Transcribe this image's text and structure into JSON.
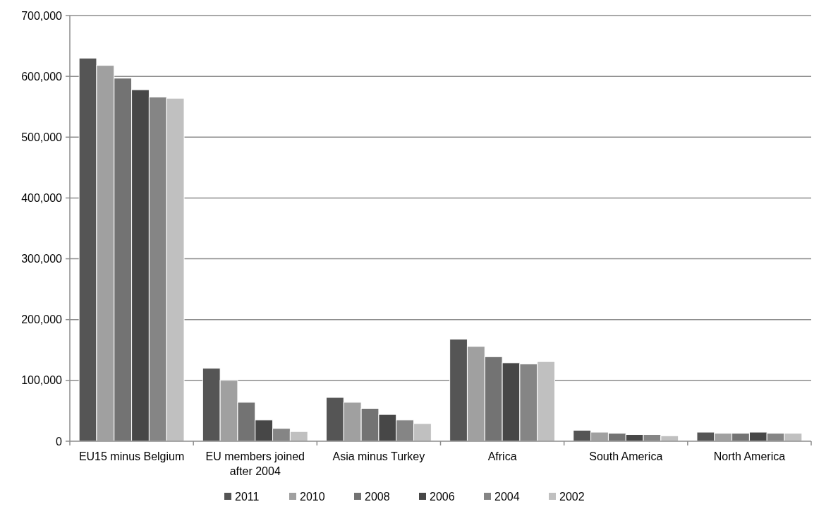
{
  "chart_data": {
    "type": "bar",
    "categories": [
      "EU15 minus Belgium",
      "EU members joined after 2004",
      "Asia minus Turkey",
      "Africa",
      "South America",
      "North America"
    ],
    "series": [
      {
        "name": "2011",
        "color": "#555555",
        "values": [
          630000,
          120000,
          72000,
          168000,
          18000,
          15000
        ]
      },
      {
        "name": "2010",
        "color": "#a0a0a0",
        "values": [
          618000,
          100000,
          64000,
          156000,
          15000,
          13000
        ]
      },
      {
        "name": "2008",
        "color": "#737373",
        "values": [
          597000,
          64000,
          54000,
          139000,
          13000,
          13000
        ]
      },
      {
        "name": "2006",
        "color": "#474747",
        "values": [
          578000,
          35000,
          44000,
          129000,
          11000,
          15000
        ]
      },
      {
        "name": "2004",
        "color": "#858585",
        "values": [
          566000,
          21000,
          35000,
          127000,
          11000,
          13000
        ]
      },
      {
        "name": "2002",
        "color": "#c0c0c0",
        "values": [
          564000,
          16000,
          29000,
          131000,
          9000,
          13000
        ]
      }
    ],
    "ylim": [
      0,
      700000
    ],
    "yticks": [
      {
        "value": 0,
        "label": "0"
      },
      {
        "value": 100000,
        "label": "100,000"
      },
      {
        "value": 200000,
        "label": "200,000"
      },
      {
        "value": 300000,
        "label": "300,000"
      },
      {
        "value": 400000,
        "label": "400,000"
      },
      {
        "value": 500000,
        "label": "500,000"
      },
      {
        "value": 600000,
        "label": "600,000"
      },
      {
        "value": 700000,
        "label": "700,000"
      }
    ],
    "grid": "y",
    "legend": "bottom"
  }
}
